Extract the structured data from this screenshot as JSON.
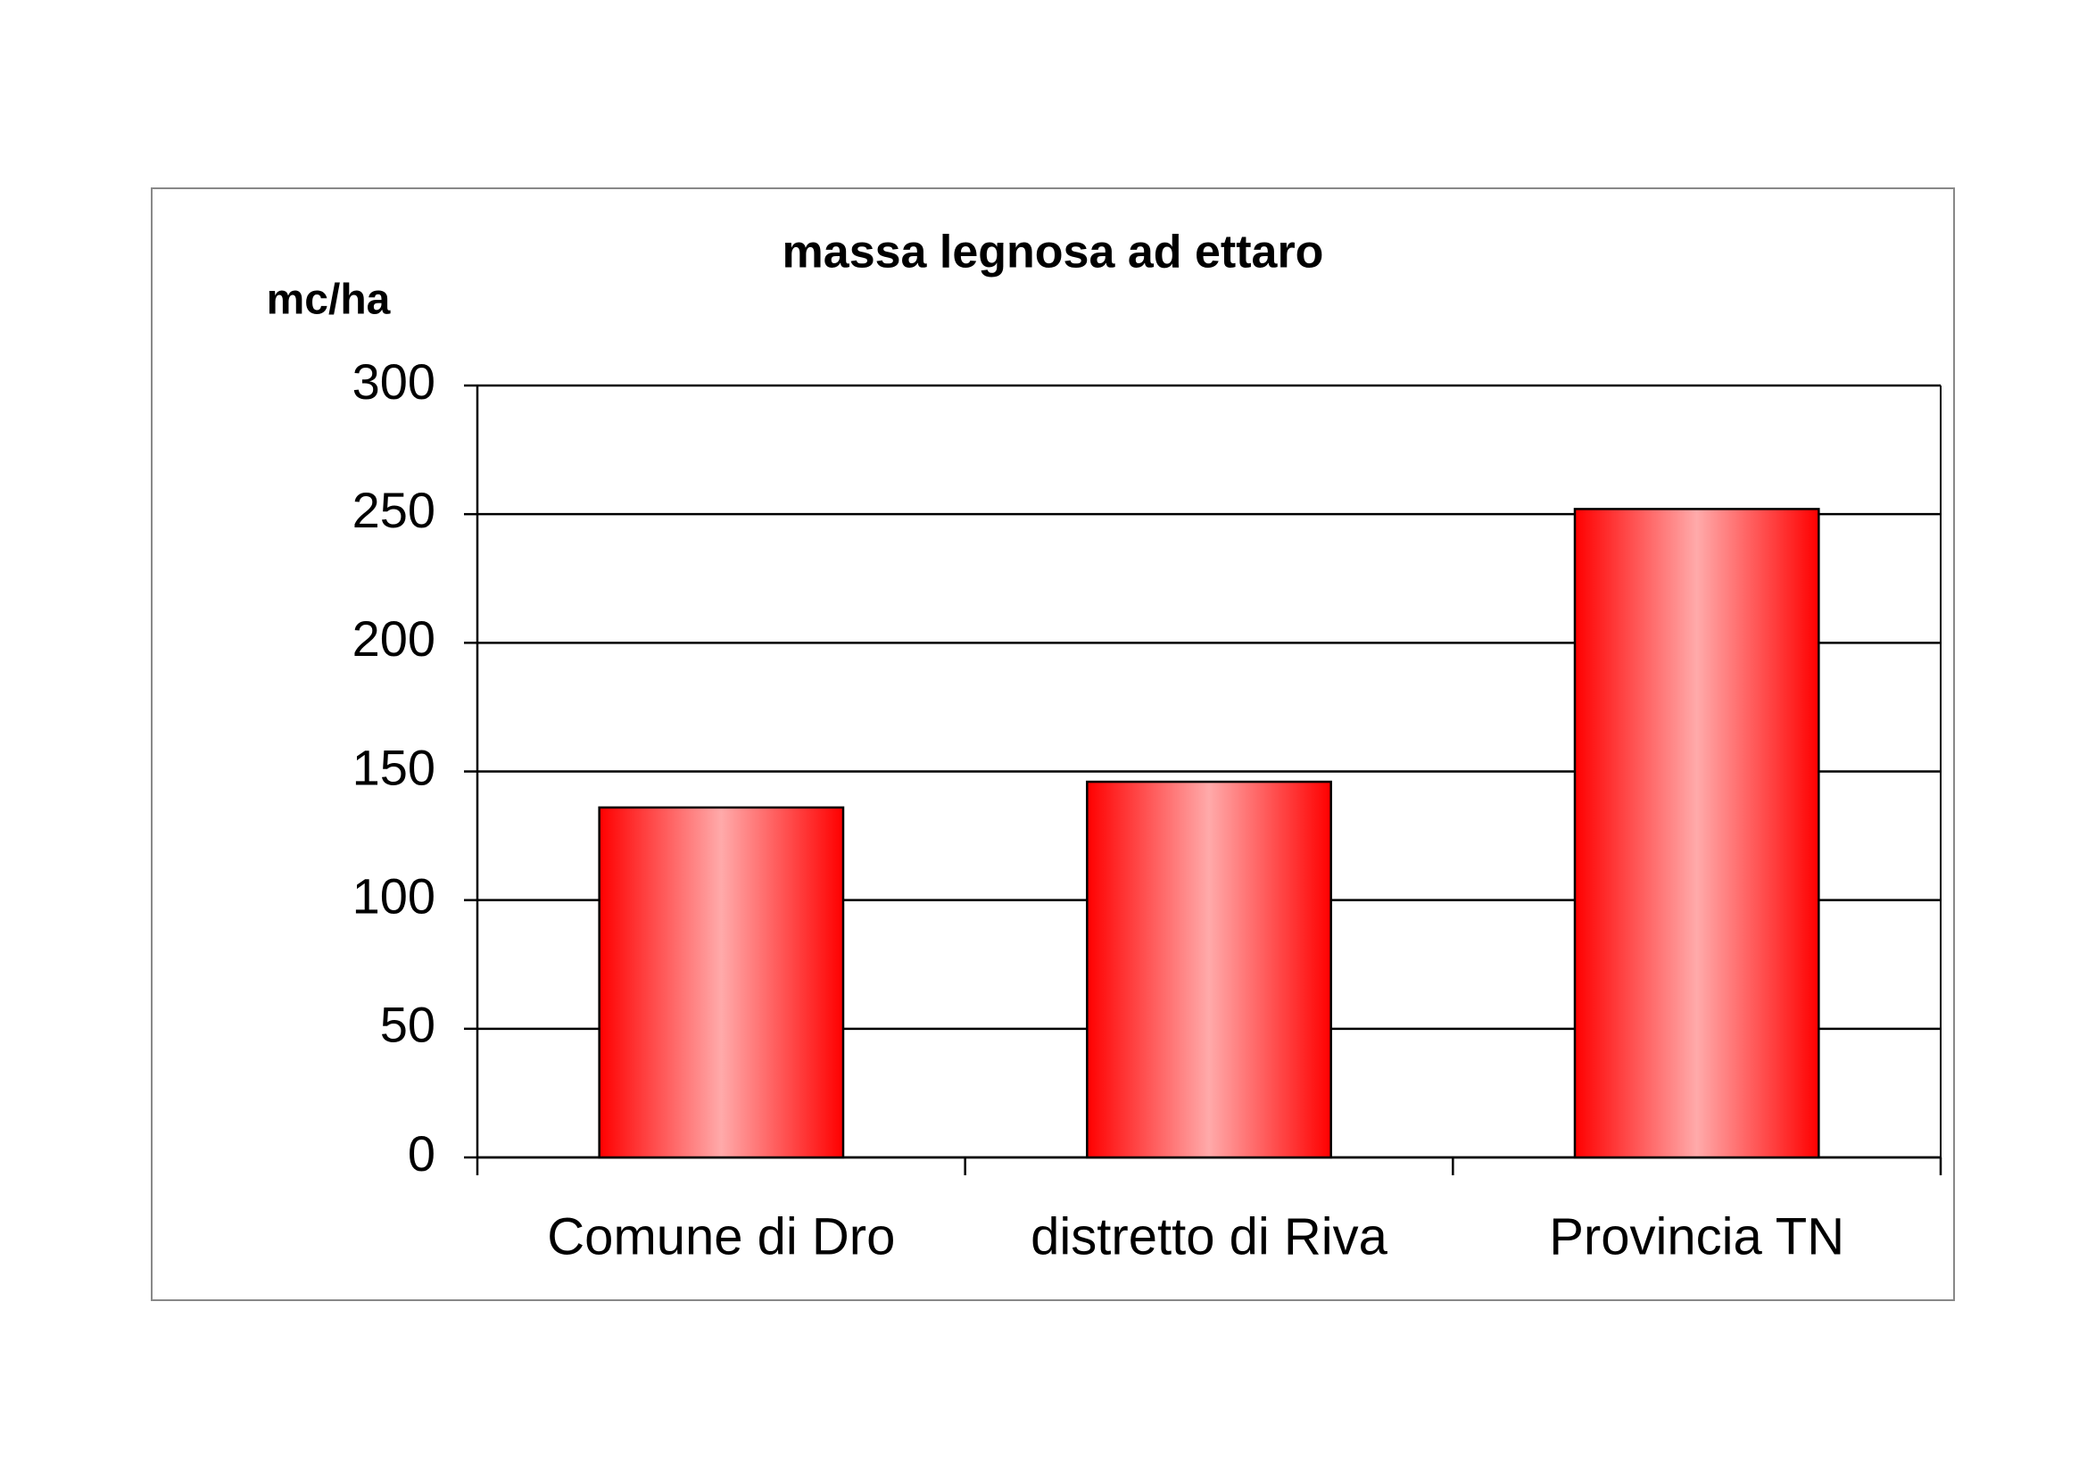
{
  "chart_data": {
    "type": "bar",
    "title": "massa legnosa ad ettaro",
    "y_label": "mc/ha",
    "categories": [
      "Comune di Dro",
      "distretto di Riva",
      "Provincia TN"
    ],
    "values": [
      136,
      146,
      252
    ],
    "color": "#ff0000",
    "ylim": [
      0,
      300
    ],
    "yticks": [
      0,
      50,
      100,
      150,
      200,
      250,
      300
    ],
    "grid": true
  }
}
